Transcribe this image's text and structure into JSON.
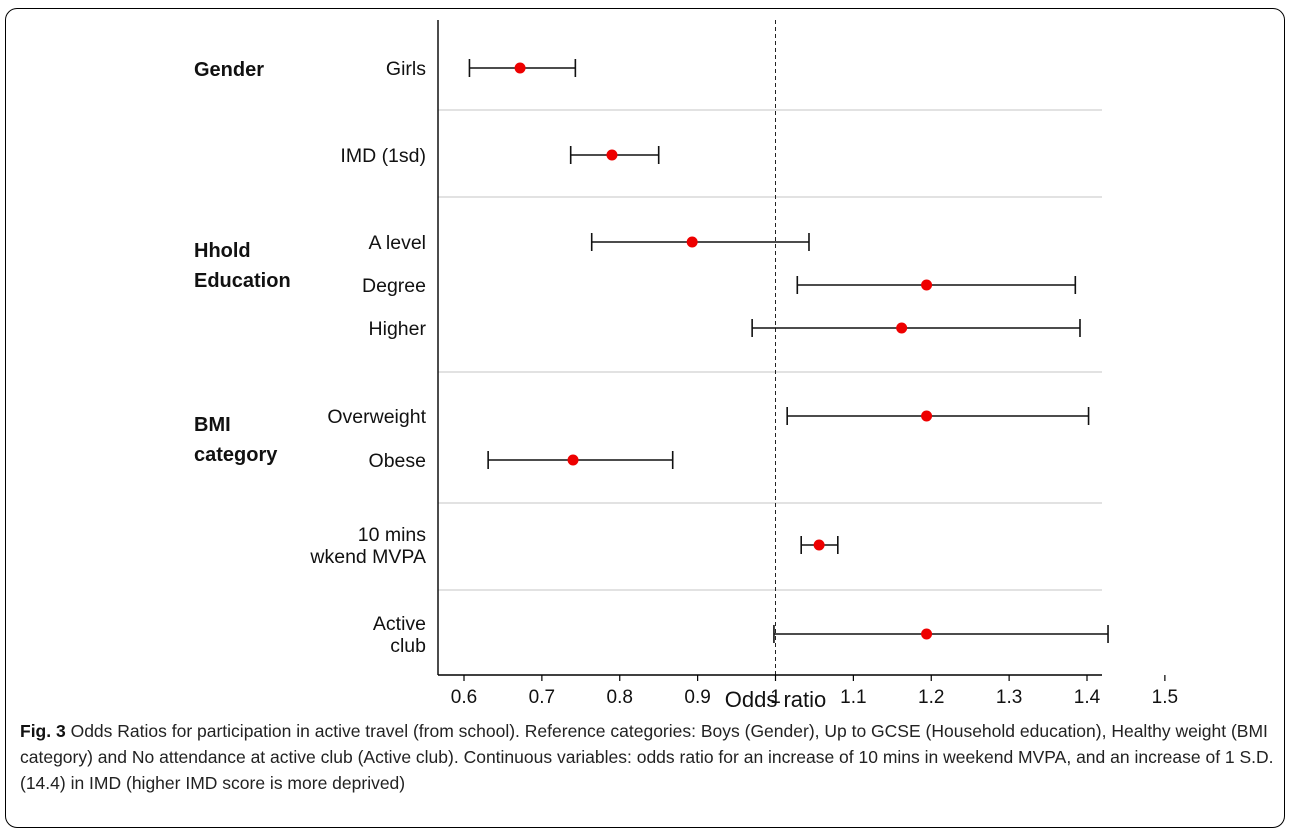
{
  "chart_data": {
    "type": "forest",
    "xlabel": "Odds ratio",
    "xlim": [
      0.56,
      1.55
    ],
    "xticks": [
      0.6,
      0.7,
      0.8,
      0.9,
      1,
      1.1,
      1.2,
      1.3,
      1.4,
      1.5
    ],
    "xtick_labels": [
      "0.6",
      "0.7",
      "0.8",
      "0.9",
      "1",
      "1.1",
      "1.2",
      "1.3",
      "1.4",
      "1.5"
    ],
    "reference_line": 1,
    "marker_color": "#ee0000",
    "separator_color": "#d9d9d9",
    "groups": [
      {
        "label": "Gender",
        "rows": [
          {
            "label_lines": [
              "Girls"
            ],
            "or": 0.672,
            "lower": 0.607,
            "upper": 0.743
          }
        ]
      },
      {
        "label": "",
        "rows": [
          {
            "label_lines": [
              "IMD (1sd)"
            ],
            "or": 0.79,
            "lower": 0.737,
            "upper": 0.85
          }
        ]
      },
      {
        "label": "Hhold Education",
        "rows": [
          {
            "label_lines": [
              "A level"
            ],
            "or": 0.893,
            "lower": 0.764,
            "upper": 1.043
          },
          {
            "label_lines": [
              "Degree"
            ],
            "or": 1.194,
            "lower": 1.028,
            "upper": 1.385
          },
          {
            "label_lines": [
              "Higher"
            ],
            "or": 1.162,
            "lower": 0.97,
            "upper": 1.391
          }
        ]
      },
      {
        "label": "BMI category",
        "rows": [
          {
            "label_lines": [
              "Overweight"
            ],
            "or": 1.194,
            "lower": 1.015,
            "upper": 1.402
          },
          {
            "label_lines": [
              "Obese"
            ],
            "or": 0.74,
            "lower": 0.631,
            "upper": 0.868
          }
        ]
      },
      {
        "label": "",
        "rows": [
          {
            "label_lines": [
              "10 mins",
              "wkend MVPA"
            ],
            "or": 1.056,
            "lower": 1.033,
            "upper": 1.08
          }
        ]
      },
      {
        "label": "",
        "rows": [
          {
            "label_lines": [
              "Active",
              "club"
            ],
            "or": 1.194,
            "lower": 0.998,
            "upper": 1.427
          }
        ]
      }
    ]
  },
  "caption": {
    "fig_label": "Fig. 3",
    "text": "Odds Ratios for participation in active travel (from school). Reference categories: Boys (Gender), Up to GCSE (Household education), Healthy weight (BMI category) and No attendance at active club (Active club). Continuous variables: odds ratio for an increase of 10 mins in weekend MVPA, and an increase of 1 S.D. (14.4) in IMD (higher IMD score is more deprived)"
  }
}
